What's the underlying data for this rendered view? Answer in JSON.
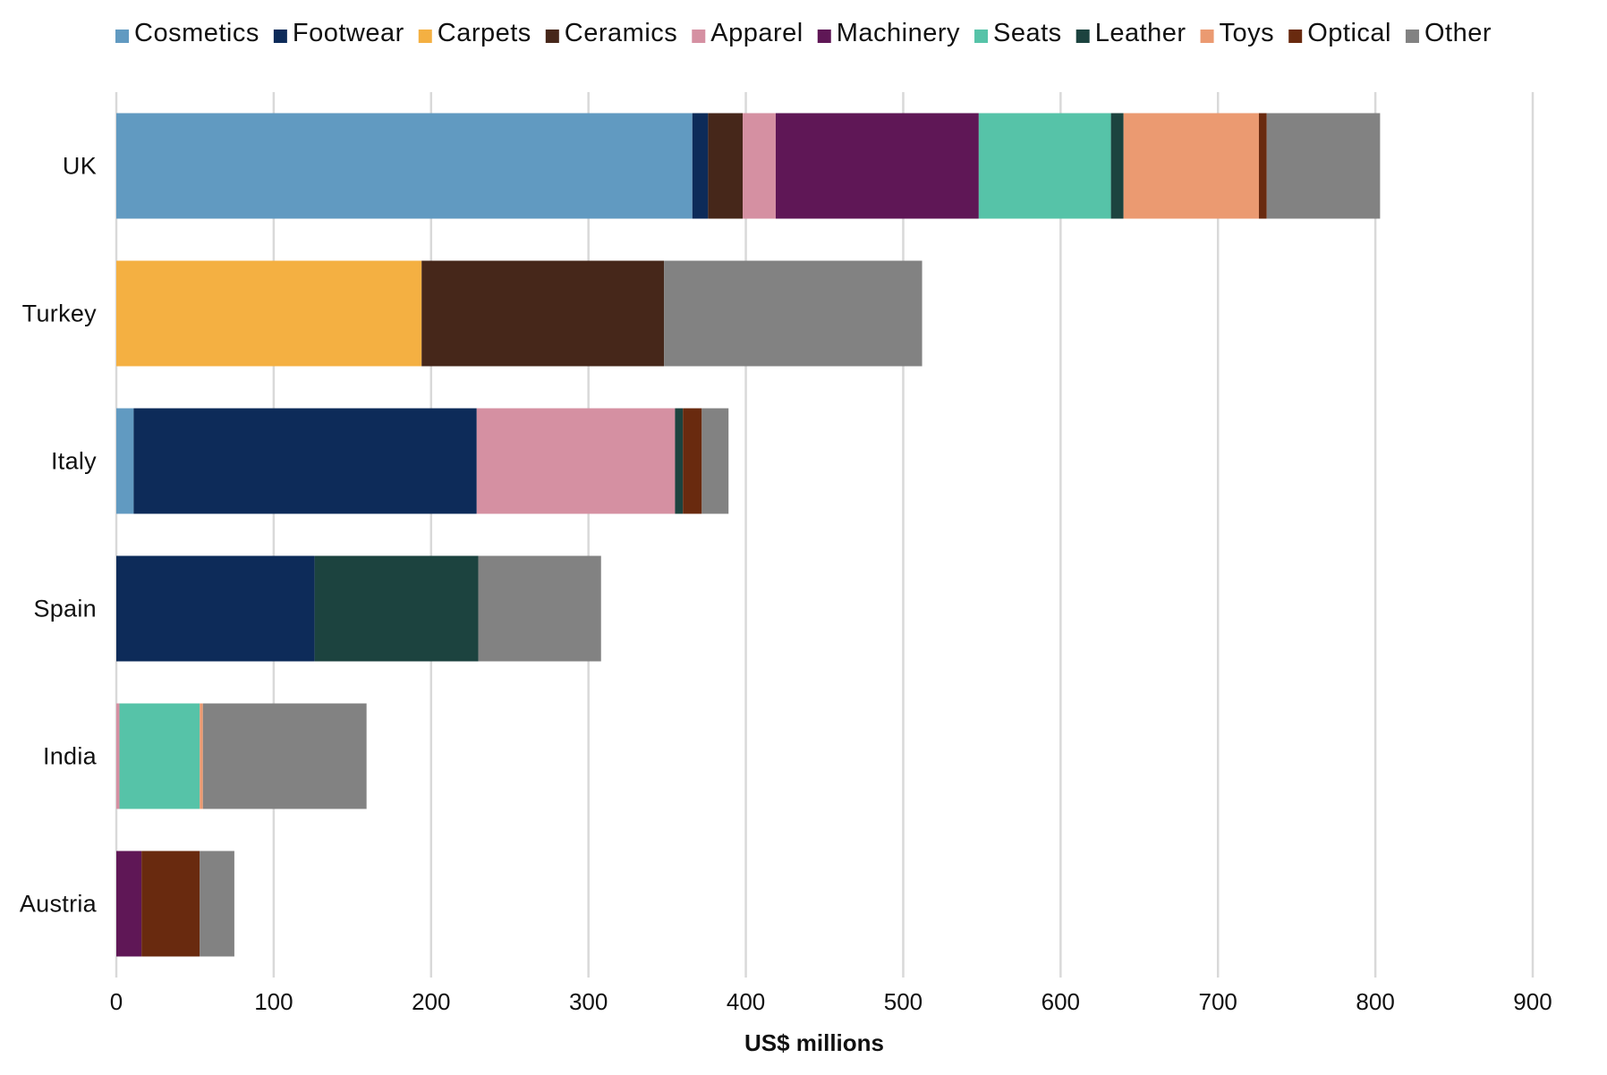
{
  "chart_data": {
    "type": "bar",
    "orientation": "horizontal",
    "stacked": true,
    "xlabel": "US$ millions",
    "ylabel": "",
    "xlim": [
      0,
      900
    ],
    "xticks": [
      0,
      100,
      200,
      300,
      400,
      500,
      600,
      700,
      800,
      900
    ],
    "grid": "vertical",
    "legend_position": "top",
    "categories": [
      "UK",
      "Turkey",
      "Italy",
      "Spain",
      "India",
      "Austria"
    ],
    "series": [
      {
        "name": "Cosmetics",
        "color": "#619ac1",
        "values": [
          366,
          0,
          11,
          0,
          0,
          0
        ]
      },
      {
        "name": "Footwear",
        "color": "#0d2b59",
        "values": [
          10,
          0,
          218,
          126,
          0,
          0
        ]
      },
      {
        "name": "Carpets",
        "color": "#f4b042",
        "values": [
          0,
          194,
          0,
          0,
          0,
          0
        ]
      },
      {
        "name": "Ceramics",
        "color": "#46271a",
        "values": [
          22,
          154,
          0,
          0,
          0,
          0
        ]
      },
      {
        "name": "Apparel",
        "color": "#d590a2",
        "values": [
          21,
          0,
          126,
          0,
          2,
          0
        ]
      },
      {
        "name": "Machinery",
        "color": "#5f1756",
        "values": [
          129,
          0,
          0,
          0,
          0,
          16
        ]
      },
      {
        "name": "Seats",
        "color": "#56c3a8",
        "values": [
          84,
          0,
          0,
          0,
          51,
          0
        ]
      },
      {
        "name": "Leather",
        "color": "#1c433f",
        "values": [
          8,
          0,
          5,
          104,
          0,
          0
        ]
      },
      {
        "name": "Toys",
        "color": "#eb9a71",
        "values": [
          86,
          0,
          0,
          0,
          2,
          0
        ]
      },
      {
        "name": "Optical",
        "color": "#692a0f",
        "values": [
          5,
          0,
          12,
          0,
          0,
          37
        ]
      },
      {
        "name": "Other",
        "color": "#828282",
        "values": [
          72,
          164,
          17,
          78,
          104,
          22
        ]
      }
    ]
  }
}
